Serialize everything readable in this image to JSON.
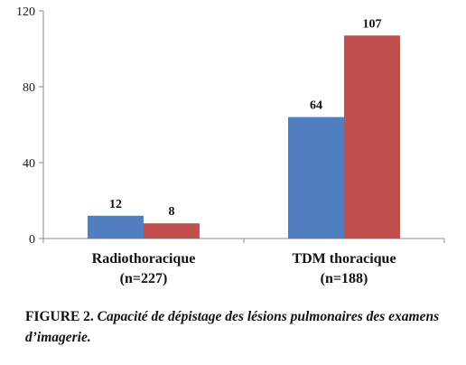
{
  "chart_data": {
    "type": "bar",
    "categories": [
      [
        "Radiothoracique",
        "(n=227)"
      ],
      [
        "TDM thoracique",
        "(n=188)"
      ]
    ],
    "series": [
      {
        "values": [
          12,
          64
        ],
        "color": "#4f7fc1"
      },
      {
        "values": [
          8,
          107
        ],
        "color": "#c0504d"
      }
    ],
    "ylim": [
      0,
      120
    ],
    "yticks": [
      0,
      40,
      80,
      120
    ],
    "grid": false,
    "legend": "none"
  },
  "caption": {
    "figure_label": "FIGURE 2.",
    "text": "Capacité de dépistage des lésions pulmonaires des examens d’imagerie."
  }
}
